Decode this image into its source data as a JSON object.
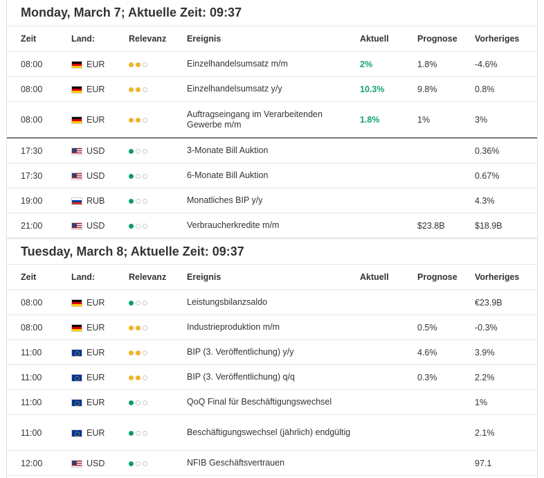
{
  "columns": {
    "time": "Zeit",
    "country": "Land:",
    "relevance": "Relevanz",
    "event": "Ereignis",
    "actual": "Aktuell",
    "forecast": "Prognose",
    "previous": "Vorheriges"
  },
  "days": [
    {
      "header": "Monday, March 7; Aktuelle Zeit: 09:37",
      "rows": [
        {
          "time": "08:00",
          "flag": "de",
          "currency": "EUR",
          "level": 2,
          "event": "Einzelhandelsumsatz m/m",
          "actual": "2%",
          "forecast": "1.8%",
          "previous": "-4.6%"
        },
        {
          "time": "08:00",
          "flag": "de",
          "currency": "EUR",
          "level": 2,
          "event": "Einzelhandelsumsatz y/y",
          "actual": "10.3%",
          "forecast": "9.8%",
          "previous": "0.8%"
        },
        {
          "time": "08:00",
          "flag": "de",
          "currency": "EUR",
          "level": 2,
          "event": "Auftragseingang im Verarbeitenden Gewerbe m/m",
          "actual": "1.8%",
          "forecast": "1%",
          "previous": "3%",
          "tall": true,
          "sep": true
        },
        {
          "time": "17:30",
          "flag": "us",
          "currency": "USD",
          "level": 1,
          "event": "3-Monate Bill Auktion",
          "actual": "",
          "forecast": "",
          "previous": "0.36%"
        },
        {
          "time": "17:30",
          "flag": "us",
          "currency": "USD",
          "level": 1,
          "event": "6-Monate Bill Auktion",
          "actual": "",
          "forecast": "",
          "previous": "0.67%"
        },
        {
          "time": "19:00",
          "flag": "ru",
          "currency": "RUB",
          "level": 1,
          "event": "Monatliches BIP y/y",
          "actual": "",
          "forecast": "",
          "previous": "4.3%"
        },
        {
          "time": "21:00",
          "flag": "us",
          "currency": "USD",
          "level": 1,
          "event": "Verbraucherkredite m/m",
          "actual": "",
          "forecast": "$23.8B",
          "previous": "$18.9B"
        }
      ]
    },
    {
      "header": "Tuesday, March 8; Aktuelle Zeit: 09:37",
      "rows": [
        {
          "time": "08:00",
          "flag": "de",
          "currency": "EUR",
          "level": 1,
          "event": "Leistungsbilanzsaldo",
          "actual": "",
          "forecast": "",
          "previous": "€23.9B"
        },
        {
          "time": "08:00",
          "flag": "de",
          "currency": "EUR",
          "level": 2,
          "event": "Industrieproduktion m/m",
          "actual": "",
          "forecast": "0.5%",
          "previous": "-0.3%"
        },
        {
          "time": "11:00",
          "flag": "eu",
          "currency": "EUR",
          "level": 2,
          "event": "BIP (3. Veröffentlichung) y/y",
          "actual": "",
          "forecast": "4.6%",
          "previous": "3.9%"
        },
        {
          "time": "11:00",
          "flag": "eu",
          "currency": "EUR",
          "level": 2,
          "event": "BIP (3. Veröffentlichung) q/q",
          "actual": "",
          "forecast": "0.3%",
          "previous": "2.2%"
        },
        {
          "time": "11:00",
          "flag": "eu",
          "currency": "EUR",
          "level": 1,
          "event": "QoQ Final für Beschäftigungswechsel",
          "actual": "",
          "forecast": "",
          "previous": "1%"
        },
        {
          "time": "11:00",
          "flag": "eu",
          "currency": "EUR",
          "level": 1,
          "event": "Beschäftigungswechsel (jährlich) endgültig",
          "actual": "",
          "forecast": "",
          "previous": "2.1%",
          "tall": true
        },
        {
          "time": "12:00",
          "flag": "us",
          "currency": "USD",
          "level": 1,
          "event": "NFIB Geschäftsvertrauen",
          "actual": "",
          "forecast": "",
          "previous": "97.1"
        }
      ]
    }
  ],
  "colors": {
    "relevance_medium": "#f0b429",
    "relevance_low": "#0b9b6e",
    "actual_text": "#14a36e"
  }
}
